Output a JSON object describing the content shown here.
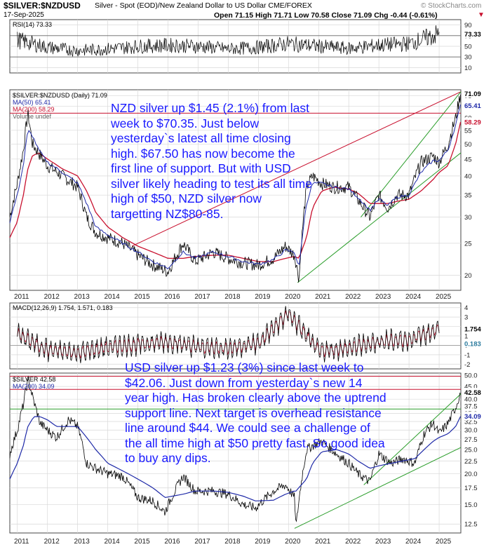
{
  "header": {
    "symbol": "$SILVER:$NZDUSD",
    "description": "Silver - Spot (EOD)/New Zealand Dollar to US Dollar  CME/FOREX",
    "date": "17-Sep-2025",
    "ohlc": "Open 71.15  High 71.71  Low 70.58  Close 71.09  Chg -0.44 (-0.61%)",
    "chg_marker": "▼",
    "brand": "© StockCharts.com"
  },
  "years": [
    "2011",
    "2012",
    "2013",
    "2014",
    "2015",
    "2016",
    "2017",
    "2018",
    "2019",
    "2020",
    "2021",
    "2022",
    "2023",
    "2024",
    "2025"
  ],
  "colors": {
    "price": "#000000",
    "ma50": "#1f2aa8",
    "ma200": "#c8102e",
    "trendline": "#2a9d2a",
    "resistance": "#c8102e",
    "note": "#1a1aff",
    "grid": "#d8d8d8"
  },
  "panels": {
    "rsi": {
      "label": "RSI(14) 73.33",
      "ticks": [
        "90",
        "70",
        "50",
        "30",
        "10"
      ],
      "last_value": "73.33"
    },
    "nzd": {
      "legend": [
        "$SILVER:$NZDUSD (Daily) 71.09",
        "MA(50) 65.41",
        "MA(200) 58.29",
        "Volume undef"
      ],
      "ticks": [
        "70",
        "65",
        "60",
        "55",
        "50",
        "45",
        "40",
        "35",
        "30",
        "25",
        "20"
      ],
      "last_labels": [
        "71.09",
        "65.41",
        "58.29"
      ],
      "annotation": "NZD silver up $1.45 (2.1%) from last week to $70.35. Just below yesterday`s latest all time closing high. $67.50 has now become the first line of support. But with USD silver likely heading to test its all time high of $50, NZD silver now targetting NZ$80-85."
    },
    "macd": {
      "label": "MACD(12,26,9) 1.754, 1.571, 0.183",
      "ticks": [
        "4",
        "3",
        "2",
        "1",
        "0",
        "-1",
        "-2"
      ],
      "last_labels": [
        "1.754",
        "0.183"
      ]
    },
    "usd": {
      "legend": [
        "$SILVER 42.58",
        "MA(200) 34.09"
      ],
      "ticks": [
        "50.0",
        "45.0",
        "40.0",
        "37.5",
        "35.0",
        "32.5",
        "30.0",
        "27.5",
        "25.0",
        "22.5",
        "20.0",
        "17.5",
        "15.0",
        "12.5"
      ],
      "last_labels": [
        "42.58",
        "34.09"
      ],
      "annotation": "USD silver up $1.23 (3%) since last week to $42.06. Just down from yesterday`s new 14 year high. Has broken clearly above the uptrend support line. Next target is overhead resistance line around $44. We could see a challenge of the all time high at $50 pretty fast. So good idea to buy any dips."
    }
  },
  "chart_data": [
    {
      "type": "line",
      "title": "RSI(14)",
      "x": [
        "2011",
        "2012",
        "2013",
        "2014",
        "2015",
        "2016",
        "2017",
        "2018",
        "2019",
        "2020",
        "2021",
        "2022",
        "2023",
        "2024",
        "2025"
      ],
      "series": [
        {
          "name": "RSI(14)",
          "values": [
            62,
            48,
            42,
            45,
            50,
            52,
            50,
            45,
            48,
            55,
            50,
            46,
            52,
            55,
            73.33
          ]
        }
      ],
      "ylim": [
        0,
        100
      ]
    },
    {
      "type": "line",
      "title": "$SILVER:$NZDUSD (Daily)",
      "x": [
        "2010.75",
        "2011.0",
        "2011.2",
        "2011.35",
        "2011.5",
        "2011.7",
        "2012.0",
        "2012.5",
        "2013.0",
        "2013.3",
        "2013.6",
        "2014.0",
        "2014.5",
        "2015.0",
        "2015.5",
        "2016.0",
        "2016.5",
        "2016.9",
        "2017.5",
        "2018.0",
        "2018.5",
        "2019.0",
        "2019.5",
        "2019.9",
        "2020.2",
        "2020.35",
        "2020.6",
        "2020.8",
        "2021.1",
        "2021.5",
        "2022.0",
        "2022.3",
        "2022.7",
        "2023.0",
        "2023.3",
        "2023.6",
        "2024.0",
        "2024.4",
        "2024.8",
        "2025.0",
        "2025.3",
        "2025.55",
        "2025.71"
      ],
      "series": [
        {
          "name": "$SILVER:$NZDUSD",
          "values": [
            30,
            38,
            48,
            62,
            50,
            47,
            43,
            40,
            37,
            30,
            27,
            26,
            25,
            23,
            21.5,
            20.5,
            25,
            22,
            23.5,
            22.5,
            21.8,
            21.5,
            22.5,
            24.5,
            23,
            19.5,
            37,
            40,
            38,
            37,
            37,
            34,
            30,
            35,
            32,
            35,
            35,
            44,
            46,
            44,
            50,
            60,
            71.09
          ]
        },
        {
          "name": "MA(50)",
          "values": [
            29,
            35,
            43,
            55,
            53,
            48,
            44,
            41,
            38,
            33,
            28,
            26.5,
            25,
            23.5,
            22,
            21,
            23.5,
            22.5,
            23.5,
            22.8,
            22,
            21.6,
            22.3,
            23.8,
            23.5,
            21,
            33,
            38,
            38,
            37,
            36.5,
            34.5,
            31.5,
            34,
            32.5,
            34.5,
            35,
            41,
            44.5,
            44.5,
            48,
            57,
            65.41
          ]
        },
        {
          "name": "MA(200)",
          "values": [
            26,
            29,
            35,
            42,
            46,
            47,
            45,
            42,
            40,
            36,
            31,
            28,
            26,
            24.5,
            23.5,
            22.5,
            22.5,
            22.8,
            23,
            23,
            22.5,
            22,
            22,
            22.5,
            22.8,
            22.5,
            26,
            32,
            36,
            37,
            36.5,
            35.5,
            33,
            33,
            33,
            33.5,
            34,
            36,
            39,
            41,
            43,
            50,
            58.29
          ]
        }
      ],
      "ylim": [
        18,
        73
      ]
    },
    {
      "type": "line",
      "title": "MACD(12,26,9)",
      "x": [
        "2011",
        "2012",
        "2013",
        "2014",
        "2015",
        "2016",
        "2017",
        "2018",
        "2019",
        "2020",
        "2021",
        "2022",
        "2023",
        "2024",
        "2025"
      ],
      "series": [
        {
          "name": "MACD",
          "values": [
            1.2,
            -0.5,
            -0.8,
            -0.2,
            0.1,
            0.4,
            -0.2,
            -0.3,
            0.2,
            3.4,
            -0.6,
            -0.3,
            0.4,
            0.6,
            1.754
          ]
        },
        {
          "name": "Signal",
          "values": [
            1.0,
            -0.4,
            -0.6,
            -0.2,
            0.1,
            0.3,
            -0.1,
            -0.2,
            0.1,
            2.5,
            -0.4,
            -0.2,
            0.3,
            0.5,
            1.571
          ]
        }
      ],
      "ylim": [
        -2.5,
        4.5
      ]
    },
    {
      "type": "line",
      "title": "$SILVER",
      "x": [
        "2010.75",
        "2011.0",
        "2011.2",
        "2011.35",
        "2011.55",
        "2011.75",
        "2012.0",
        "2012.3",
        "2012.7",
        "2013.0",
        "2013.3",
        "2013.6",
        "2014.0",
        "2014.5",
        "2015.0",
        "2015.5",
        "2015.9",
        "2016.5",
        "2016.9",
        "2017.5",
        "2018.0",
        "2018.5",
        "2018.9",
        "2019.5",
        "2019.9",
        "2020.2",
        "2020.25",
        "2020.6",
        "2020.8",
        "2021.1",
        "2021.6",
        "2022.0",
        "2022.3",
        "2022.7",
        "2023.0",
        "2023.4",
        "2023.8",
        "2024.2",
        "2024.5",
        "2024.8",
        "2025.0",
        "2025.3",
        "2025.55",
        "2025.71"
      ],
      "series": [
        {
          "name": "$SILVER",
          "values": [
            24,
            30,
            38,
            48,
            39,
            32,
            30,
            28,
            33,
            31,
            22,
            21,
            20,
            19.5,
            16,
            15.5,
            14,
            19.5,
            17,
            17,
            16.5,
            15,
            14.5,
            17,
            18,
            16,
            12,
            25,
            26,
            27,
            24,
            22,
            20,
            18.5,
            24,
            22,
            23,
            22,
            29,
            32,
            29,
            32,
            37,
            42.58
          ]
        },
        {
          "name": "MA(200)",
          "values": [
            19,
            22,
            26,
            31,
            34,
            34,
            33,
            31,
            31,
            31,
            28,
            25,
            22,
            20.5,
            19,
            17.5,
            16,
            16.5,
            17,
            17,
            16.8,
            16.2,
            15.5,
            15.6,
            16.5,
            17,
            17,
            19,
            22,
            24.5,
            25,
            24,
            22.5,
            21,
            21.5,
            22,
            22.5,
            23,
            25,
            27,
            28,
            29,
            31,
            34.09
          ]
        }
      ],
      "ylim": [
        11.5,
        51
      ]
    }
  ]
}
